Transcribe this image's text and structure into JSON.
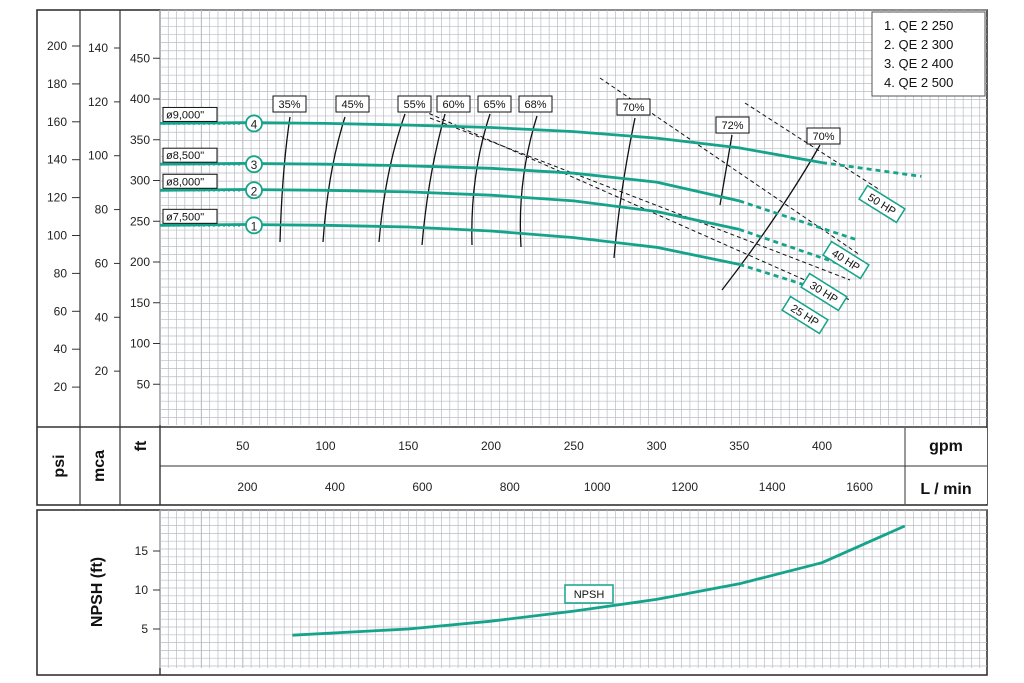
{
  "chart_data": [
    {
      "type": "line",
      "title": "",
      "legend": [
        "1. QE 2 250",
        "2. QE 2 300",
        "3. QE 2 400",
        "4. QE 2 500"
      ],
      "legend_position": "top-right",
      "x_axis": {
        "primary": {
          "unit": "gpm",
          "ticks": [
            50,
            100,
            150,
            200,
            250,
            300,
            350,
            400
          ],
          "range": [
            0,
            495
          ]
        },
        "secondary": {
          "unit": "L / min",
          "ticks": [
            200,
            400,
            600,
            800,
            1000,
            1200,
            1400,
            1600
          ]
        }
      },
      "y_axes": [
        {
          "unit": "psi",
          "ticks": [
            20,
            40,
            60,
            80,
            100,
            120,
            140,
            160,
            180,
            200
          ]
        },
        {
          "unit": "mca",
          "ticks": [
            20,
            40,
            60,
            80,
            100,
            120,
            140
          ]
        },
        {
          "unit": "ft",
          "ticks": [
            50,
            100,
            150,
            200,
            250,
            300,
            350,
            400,
            450
          ],
          "range": [
            0,
            475
          ]
        }
      ],
      "grid": true,
      "series": [
        {
          "name": "1",
          "impeller": "ø7,500\"",
          "x": [
            0,
            50,
            100,
            150,
            200,
            250,
            300,
            350,
            380,
            400
          ],
          "y": [
            245,
            246,
            245,
            243,
            238,
            230,
            218,
            197,
            178,
            165
          ],
          "dashed_from_x": 370
        },
        {
          "name": "2",
          "impeller": "ø8,000\"",
          "x": [
            0,
            50,
            100,
            150,
            200,
            250,
            300,
            350,
            390,
            410
          ],
          "y": [
            288,
            289,
            288,
            286,
            282,
            275,
            262,
            240,
            212,
            198
          ],
          "dashed_from_x": 385
        },
        {
          "name": "3",
          "impeller": "ø8,500\"",
          "x": [
            0,
            50,
            100,
            150,
            200,
            250,
            300,
            350,
            390,
            420
          ],
          "y": [
            320,
            321,
            320,
            318,
            315,
            309,
            298,
            275,
            248,
            228
          ],
          "dashed_from_x": 380
        },
        {
          "name": "4",
          "impeller": "ø9,000\"",
          "x": [
            0,
            50,
            100,
            150,
            200,
            250,
            300,
            350,
            400,
            460
          ],
          "y": [
            370,
            371,
            370,
            368,
            365,
            360,
            352,
            340,
            322,
            305
          ],
          "dashed_from_x": 400
        }
      ],
      "efficiency_labels": [
        "35%",
        "45%",
        "55%",
        "60%",
        "65%",
        "68%",
        "70%",
        "72%",
        "70%"
      ],
      "power_labels": [
        "50 HP",
        "40 HP",
        "30 HP",
        "25 HP"
      ]
    },
    {
      "type": "line",
      "ylabel": "NPSH (ft)",
      "x_axis_ref": "gpm",
      "y_ticks": [
        5,
        10,
        15
      ],
      "y_range": [
        0,
        20
      ],
      "series": [
        {
          "name": "NPSH",
          "x": [
            80,
            150,
            200,
            250,
            300,
            350,
            400,
            450
          ],
          "y": [
            4.2,
            5.0,
            6.0,
            7.3,
            8.8,
            10.8,
            13.5,
            18.2
          ]
        }
      ]
    }
  ]
}
